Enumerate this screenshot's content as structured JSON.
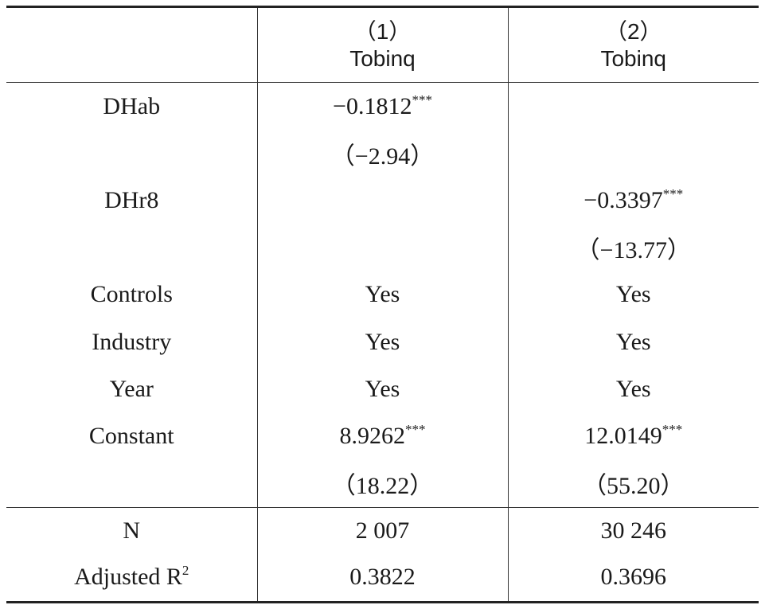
{
  "header": {
    "columns": [
      {
        "number": "（1）",
        "label": "Tobinq"
      },
      {
        "number": "（2）",
        "label": "Tobinq"
      }
    ]
  },
  "body": [
    [
      {
        "text": "DHab"
      },
      {
        "text": "−0.1812",
        "sup": "***"
      },
      null
    ],
    [
      null,
      {
        "text": "（−2.94）"
      },
      null
    ],
    [
      {
        "text": "DHr8"
      },
      null,
      {
        "text": "−0.3397",
        "sup": "***"
      }
    ],
    [
      null,
      null,
      {
        "text": "（−13.77）"
      }
    ],
    [
      {
        "text": "Controls"
      },
      {
        "text": "Yes"
      },
      {
        "text": "Yes"
      }
    ],
    [
      {
        "text": "Industry"
      },
      {
        "text": "Yes"
      },
      {
        "text": "Yes"
      }
    ],
    [
      {
        "text": "Year"
      },
      {
        "text": "Yes"
      },
      {
        "text": "Yes"
      }
    ],
    [
      {
        "text": "Constant"
      },
      {
        "text": "8.9262",
        "sup": "***"
      },
      {
        "text": "12.0149",
        "sup": "***"
      }
    ],
    [
      null,
      {
        "text": "（18.22）"
      },
      {
        "text": "（55.20）"
      }
    ]
  ],
  "footer": [
    [
      {
        "text": "N"
      },
      {
        "text": "2 007"
      },
      {
        "text": "30 246"
      }
    ],
    [
      {
        "text": "Adjusted R",
        "sup": "2"
      },
      {
        "text": "0.3822"
      },
      {
        "text": "0.3696"
      }
    ]
  ]
}
